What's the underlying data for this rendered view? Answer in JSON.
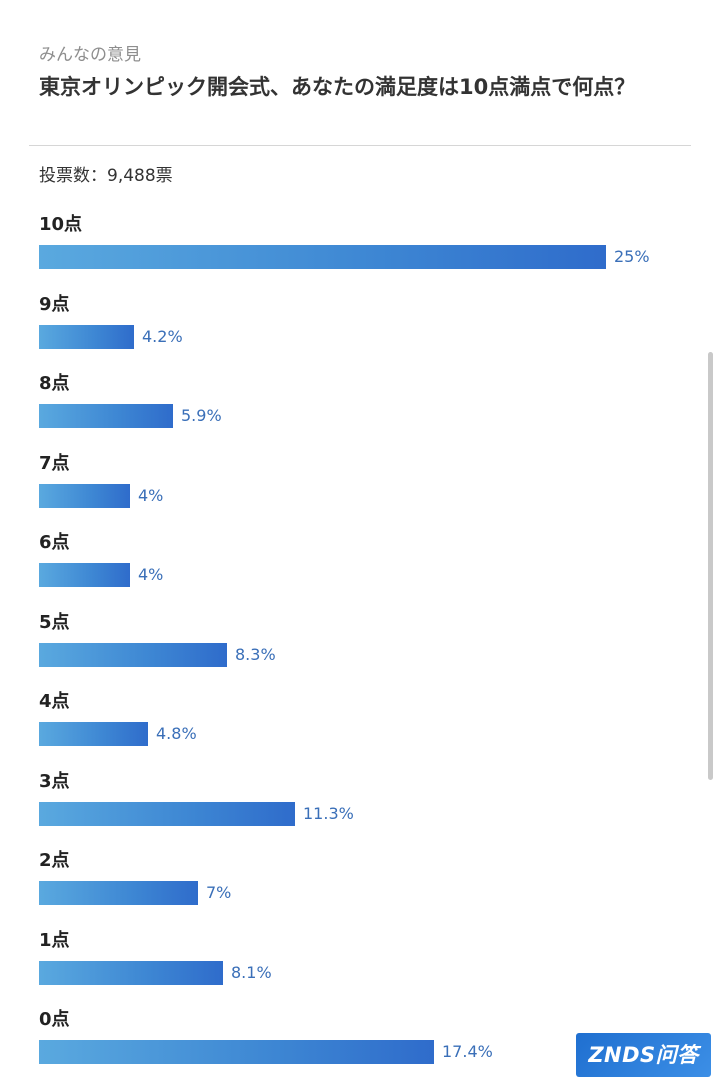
{
  "header": {
    "kicker": "みんなの意見",
    "question": "東京オリンピック開会式、あなたの満足度は10点満点で何点？",
    "votes": "投票数：9,488票"
  },
  "watermark": "ZNDS问答",
  "colors": {
    "bar_start": "#5aa9df",
    "bar_end": "#2f6ccb",
    "percent_text": "#3a6fb8"
  },
  "chart_data": {
    "type": "bar",
    "orientation": "horizontal",
    "categories": [
      "10点",
      "9点",
      "8点",
      "7点",
      "6点",
      "5点",
      "4点",
      "3点",
      "2点",
      "1点",
      "0点"
    ],
    "values": [
      25,
      4.2,
      5.9,
      4,
      4,
      8.3,
      4.8,
      11.3,
      7,
      8.1,
      17.4
    ],
    "value_labels": [
      "25%",
      "4.2%",
      "5.9%",
      "4%",
      "4%",
      "8.3%",
      "4.8%",
      "11.3%",
      "7%",
      "8.1%",
      "17.4%"
    ],
    "unit": "%",
    "xlim": [
      0,
      25
    ],
    "grid": false
  }
}
